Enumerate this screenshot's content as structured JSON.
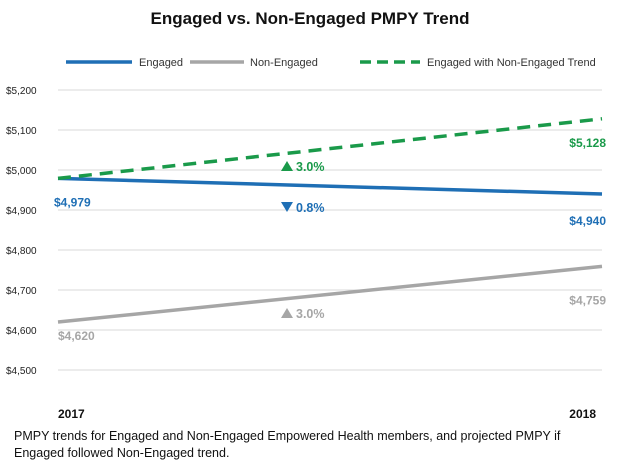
{
  "chart_data": {
    "type": "line",
    "title": "Engaged vs. Non-Engaged PMPY Trend",
    "x": [
      "2017",
      "2018"
    ],
    "ylim": [
      4500,
      5200
    ],
    "yticks": [
      "$4,500",
      "$4,600",
      "$4,700",
      "$4,800",
      "$4,900",
      "$5,000",
      "$5,100",
      "$5,200"
    ],
    "ytick_values": [
      4500,
      4600,
      4700,
      4800,
      4900,
      5000,
      5100,
      5200
    ],
    "grid": true,
    "legend_position": "top",
    "series": [
      {
        "name": "Engaged",
        "values": [
          4979,
          4940
        ],
        "labels": [
          "$4,979",
          "$4,940"
        ],
        "color": "#1f6fb5",
        "style": "solid",
        "change": {
          "text": "0.8%",
          "direction": "down"
        }
      },
      {
        "name": "Non-Engaged",
        "values": [
          4620,
          4759
        ],
        "labels": [
          "$4,620",
          "$4,759"
        ],
        "color": "#a6a6a6",
        "style": "solid",
        "change": {
          "text": "3.0%",
          "direction": "up"
        }
      },
      {
        "name": "Engaged with Non-Engaged Trend",
        "values": [
          4979,
          5128
        ],
        "labels": [
          "",
          "$5,128"
        ],
        "color": "#1a9a4a",
        "style": "dashed",
        "change": {
          "text": "3.0%",
          "direction": "up"
        }
      }
    ]
  },
  "caption": "PMPY trends for Engaged and Non-Engaged Empowered Health members, and projected PMPY if Engaged followed Non-Engaged trend."
}
